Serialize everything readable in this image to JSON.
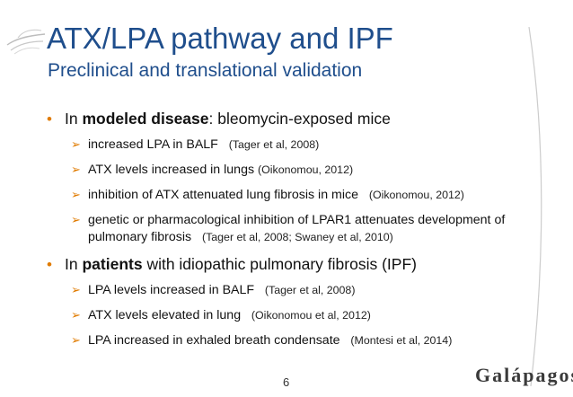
{
  "slide": {
    "title": "ATX/LPA pathway and IPF",
    "subtitle": "Preclinical and translational validation",
    "page_number": "6",
    "brand": "Galápagos"
  },
  "bullets": [
    {
      "prefix": "In ",
      "bold": "modeled disease",
      "suffix": ": bleomycin-exposed mice",
      "items": [
        {
          "text": "increased LPA in BALF",
          "ref": "(Tager et al, 2008)"
        },
        {
          "text": "ATX levels increased in lungs",
          "ref": "(Oikonomou, 2012)"
        },
        {
          "text": "inhibition of ATX attenuated lung fibrosis in mice",
          "ref": "(Oikonomou, 2012)"
        },
        {
          "text": "genetic or pharmacological inhibition of LPAR1 attenuates development of pulmonary fibrosis",
          "ref": "(Tager et al, 2008; Swaney et al, 2010)"
        }
      ]
    },
    {
      "prefix": "In ",
      "bold": "patients",
      "suffix": " with idiopathic pulmonary fibrosis (IPF)",
      "items": [
        {
          "text": "LPA levels increased in BALF",
          "ref": "(Tager et al, 2008)"
        },
        {
          "text": "ATX levels elevated in lung",
          "ref": "(Oikonomou et al, 2012)"
        },
        {
          "text": "LPA increased in exhaled breath condensate",
          "ref": "(Montesi et al, 2014)"
        }
      ]
    }
  ],
  "colors": {
    "title": "#1f4e8c",
    "accent": "#e07b00"
  },
  "icons": {
    "bullet": "round-bullet",
    "sub_bullet": "arrowhead-bullet",
    "corner": "bird-logo-icon"
  }
}
